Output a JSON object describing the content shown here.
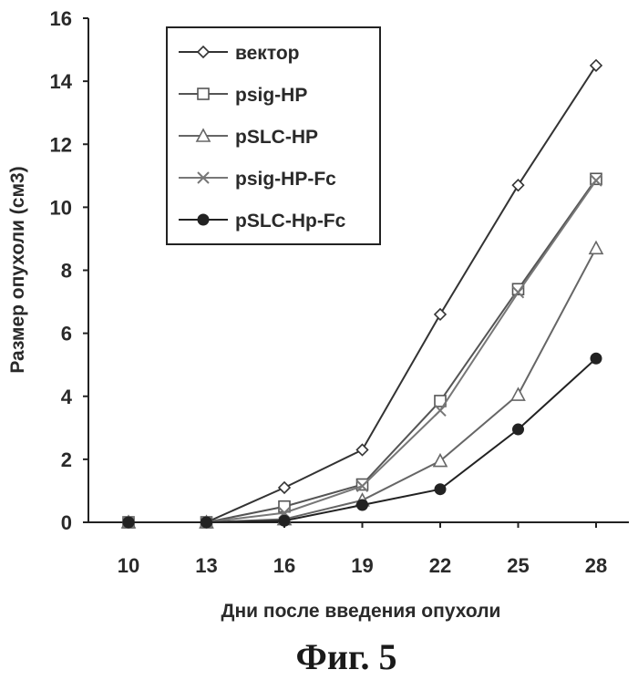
{
  "chart_data": {
    "type": "line",
    "title": "",
    "xlabel": "Дни после введения опухоли",
    "ylabel": "Размер опухоли (см3)",
    "x": [
      10,
      13,
      16,
      19,
      22,
      25,
      28
    ],
    "xticks": [
      "10",
      "13",
      "16",
      "19",
      "22",
      "25",
      "28"
    ],
    "ylim": [
      0,
      16
    ],
    "yticks": [
      0,
      2,
      4,
      6,
      8,
      10,
      12,
      14,
      16
    ],
    "grid": false,
    "legend_position": "top-left",
    "series": [
      {
        "name": "вектор",
        "marker": "diamond",
        "color": "#333333",
        "values": [
          0,
          0,
          1.1,
          2.3,
          6.6,
          10.7,
          14.5
        ]
      },
      {
        "name": "psig-HP",
        "marker": "square",
        "color": "#555555",
        "values": [
          0,
          0,
          0.5,
          1.2,
          3.85,
          7.4,
          10.9
        ]
      },
      {
        "name": "pSLC-HP",
        "marker": "triangle",
        "color": "#666666",
        "values": [
          0,
          0,
          0.1,
          0.7,
          1.95,
          4.05,
          8.7
        ]
      },
      {
        "name": "psig-HP-Fc",
        "marker": "x",
        "color": "#777777",
        "values": [
          0,
          0,
          0.3,
          1.15,
          3.55,
          7.3,
          10.85
        ]
      },
      {
        "name": "pSLC-Hp-Fc",
        "marker": "circle",
        "color": "#222222",
        "values": [
          0,
          0,
          0.05,
          0.55,
          1.05,
          2.95,
          5.2
        ]
      }
    ]
  },
  "caption": "Фиг. 5"
}
